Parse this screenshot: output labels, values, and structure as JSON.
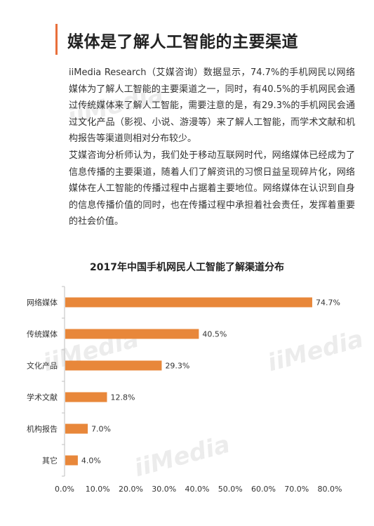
{
  "heading": "媒体是了解人工智能的主要渠道",
  "paragraphs": [
    "iiMedia Research（艾媒咨询）数据显示，74.7%的手机网民以网络媒体为了解人工智能的主要渠道之一，同时，有40.5%的手机网民会通过传统媒体来了解人工智能，需要注意的是，有29.3%的手机网民会通过文化产品（影视、小说、游漫等）来了解人工智能，而学术文献和机构报告等渠道则相对分布较少。",
    "艾媒咨询分析师认为，我们处于移动互联网时代，网络媒体已经成为了信息传播的主要渠道，随着人们了解资讯的习惯日益呈现碎片化，网络媒体在人工智能的传播过程中占据着主要地位。网络媒体在认识到自身的信息传播价值的同时，也在传播过程中承担着社会责任，发挥着重要的社会价值。"
  ],
  "watermark": "iiMedia",
  "chart_data": {
    "type": "bar",
    "orientation": "horizontal",
    "title": "2017年中国手机网民人工智能了解渠道分布",
    "categories": [
      "网络媒体",
      "传统媒体",
      "文化产品",
      "学术文献",
      "机构报告",
      "其它"
    ],
    "values": [
      74.7,
      40.5,
      29.3,
      12.8,
      7.0,
      4.0
    ],
    "value_labels": [
      "74.7%",
      "40.5%",
      "29.3%",
      "12.8%",
      "7.0%",
      "4.0%"
    ],
    "xlim": [
      0,
      80
    ],
    "x_ticks": [
      "0.0%",
      "10.0%",
      "20.0%",
      "30.0%",
      "40.0%",
      "50.0%",
      "60.0%",
      "70.0%",
      "80.0%"
    ],
    "grid": false,
    "bar_color": "#e8873a"
  }
}
